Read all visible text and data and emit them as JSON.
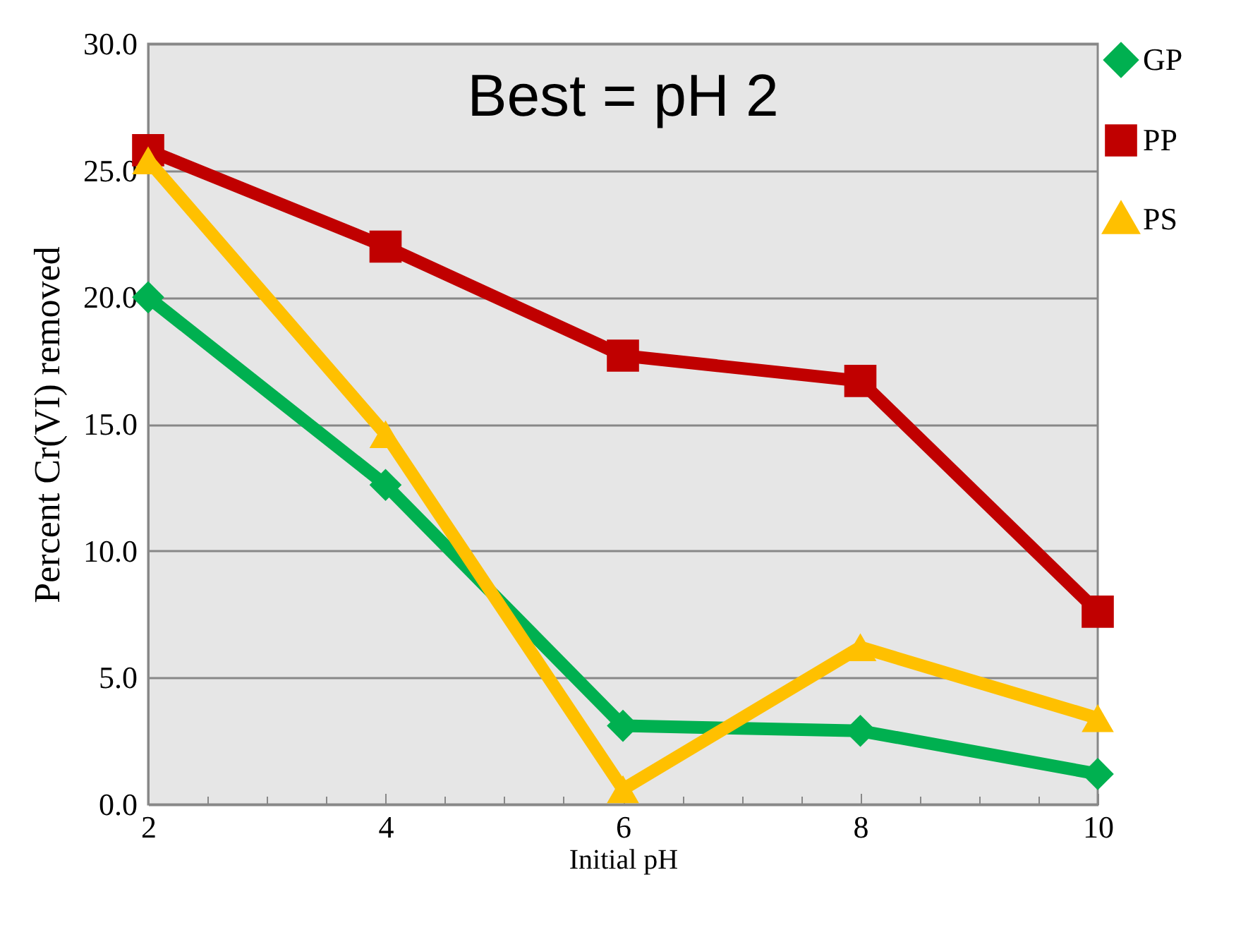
{
  "chart_data": {
    "type": "line",
    "xlabel": "Initial pH",
    "ylabel": "Percent Cr(VI) removed",
    "annotations": [
      "Best = pH 2"
    ],
    "x": [
      2,
      4,
      6,
      8,
      10
    ],
    "series": [
      {
        "name": "GP",
        "color": "#00b050",
        "marker": "diamond",
        "values": [
          20.0,
          12.6,
          3.1,
          2.9,
          1.2
        ]
      },
      {
        "name": "PP",
        "color": "#c00000",
        "marker": "square",
        "values": [
          25.8,
          22.0,
          17.7,
          16.7,
          7.6
        ]
      },
      {
        "name": "PS",
        "color": "#ffc000",
        "marker": "triangle",
        "values": [
          25.4,
          14.6,
          0.6,
          6.2,
          3.4
        ]
      }
    ],
    "xlim": [
      2,
      10
    ],
    "xticks": [
      2,
      {
        "value": 2.5,
        "label": null
      },
      {
        "value": 3,
        "label": null
      },
      {
        "value": 3.5,
        "label": null
      },
      4,
      {
        "value": 4.5,
        "label": null
      },
      {
        "value": 5,
        "label": null
      },
      {
        "value": 5.5,
        "label": null
      },
      6,
      {
        "value": 6.5,
        "label": null
      },
      {
        "value": 7,
        "label": null
      },
      {
        "value": 7.5,
        "label": null
      },
      8,
      {
        "value": 8.5,
        "label": null
      },
      {
        "value": 9,
        "label": null
      },
      {
        "value": 9.5,
        "label": null
      },
      10
    ],
    "ylim": [
      0,
      30
    ],
    "yticks": [
      {
        "value": 0,
        "label": "0.0"
      },
      {
        "value": 5,
        "label": "5.0"
      },
      {
        "value": 10,
        "label": "10.0"
      },
      {
        "value": 15,
        "label": "15.0"
      },
      {
        "value": 20,
        "label": "20.0"
      },
      {
        "value": 25,
        "label": "25.0"
      },
      {
        "value": 30,
        "label": "30.0"
      }
    ],
    "grid": "y",
    "legend": "right"
  }
}
